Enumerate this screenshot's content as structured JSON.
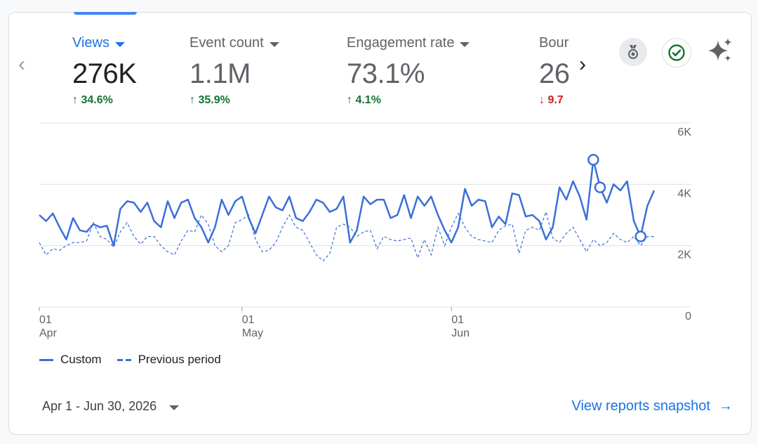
{
  "metrics": [
    {
      "label": "Views",
      "value": "276K",
      "change": "34.6%",
      "direction": "up",
      "active": true
    },
    {
      "label": "Event count",
      "value": "1.1M",
      "change": "35.9%",
      "direction": "up",
      "active": false
    },
    {
      "label": "Engagement rate",
      "value": "73.1%",
      "change": "4.1%",
      "direction": "up",
      "active": false
    },
    {
      "label": "Bour",
      "value": "26",
      "change": "9.7",
      "direction": "down",
      "active": false
    }
  ],
  "arrows": {
    "up": "↑",
    "down": "↓"
  },
  "icons": {
    "prev": "‹",
    "next": "›",
    "medal": "medal-icon",
    "check": "check-circle-icon",
    "sparkle": "sparkle-icon",
    "arrow": "→"
  },
  "colors": {
    "accent": "#1a73e8",
    "series": "#3b6fd8",
    "positive": "#137333",
    "negative": "#c5221f"
  },
  "chart_data": {
    "type": "line",
    "yticks": [
      "6K",
      "4K",
      "2K",
      "0"
    ],
    "ylim": [
      0,
      6000
    ],
    "xticks": [
      {
        "day": "01",
        "month": "Apr"
      },
      {
        "day": "01",
        "month": "May"
      },
      {
        "day": "01",
        "month": "Jun"
      }
    ],
    "x": {
      "start": "2026-04-01",
      "end": "2026-06-30",
      "step": "day"
    },
    "series": [
      {
        "name": "Custom",
        "style": "solid",
        "values": [
          3000,
          2800,
          3050,
          2600,
          2200,
          2900,
          2500,
          2450,
          2700,
          2600,
          2650,
          2000,
          3200,
          3450,
          3400,
          3100,
          3400,
          2800,
          2600,
          3450,
          2900,
          3400,
          3500,
          2900,
          2600,
          2100,
          2600,
          3500,
          3000,
          3450,
          3600,
          2900,
          2400,
          3000,
          3600,
          3250,
          3150,
          3600,
          2900,
          2800,
          3100,
          3500,
          3400,
          3100,
          3200,
          3600,
          2100,
          2500,
          3600,
          3350,
          3500,
          3500,
          2900,
          3000,
          3650,
          2900,
          3600,
          3300,
          3600,
          3000,
          2500,
          2100,
          2600,
          3850,
          3300,
          3500,
          3450,
          2600,
          2950,
          2700,
          3700,
          3650,
          2950,
          3000,
          2800,
          2200,
          2600,
          3900,
          3500,
          4100,
          3600,
          2850,
          4800,
          3900,
          3400,
          4000,
          3800,
          4100,
          2800,
          2300,
          3300,
          3800
        ]
      },
      {
        "name": "Previous period",
        "style": "dashed",
        "values": [
          2100,
          1700,
          1900,
          1850,
          2000,
          2100,
          2100,
          2150,
          2750,
          2300,
          2200,
          1950,
          2450,
          2750,
          2300,
          2050,
          2300,
          2300,
          2000,
          1800,
          1700,
          2150,
          2500,
          2450,
          3000,
          2700,
          2000,
          1800,
          2000,
          2750,
          2850,
          3000,
          2200,
          1800,
          1850,
          2100,
          2600,
          3000,
          2600,
          2500,
          2100,
          1700,
          1500,
          1750,
          2600,
          2700,
          2600,
          2300,
          2450,
          2500,
          1900,
          2300,
          2200,
          2150,
          2200,
          2250,
          1600,
          2200,
          1700,
          2600,
          2000,
          2600,
          3050,
          2600,
          2300,
          2200,
          2150,
          2100,
          2500,
          2650,
          2700,
          1750,
          2500,
          2600,
          2500,
          3100,
          2250,
          2100,
          2400,
          2600,
          2200,
          1800,
          2200,
          2000,
          2100,
          2400,
          2200,
          2100,
          2300,
          2000,
          2300,
          2300
        ]
      }
    ],
    "markers": [
      82,
      83,
      89
    ]
  },
  "legend": {
    "custom": "Custom",
    "previous": "Previous period"
  },
  "footer": {
    "date_range": "Apr 1 - Jun 30, 2026",
    "link": "View reports snapshot"
  }
}
